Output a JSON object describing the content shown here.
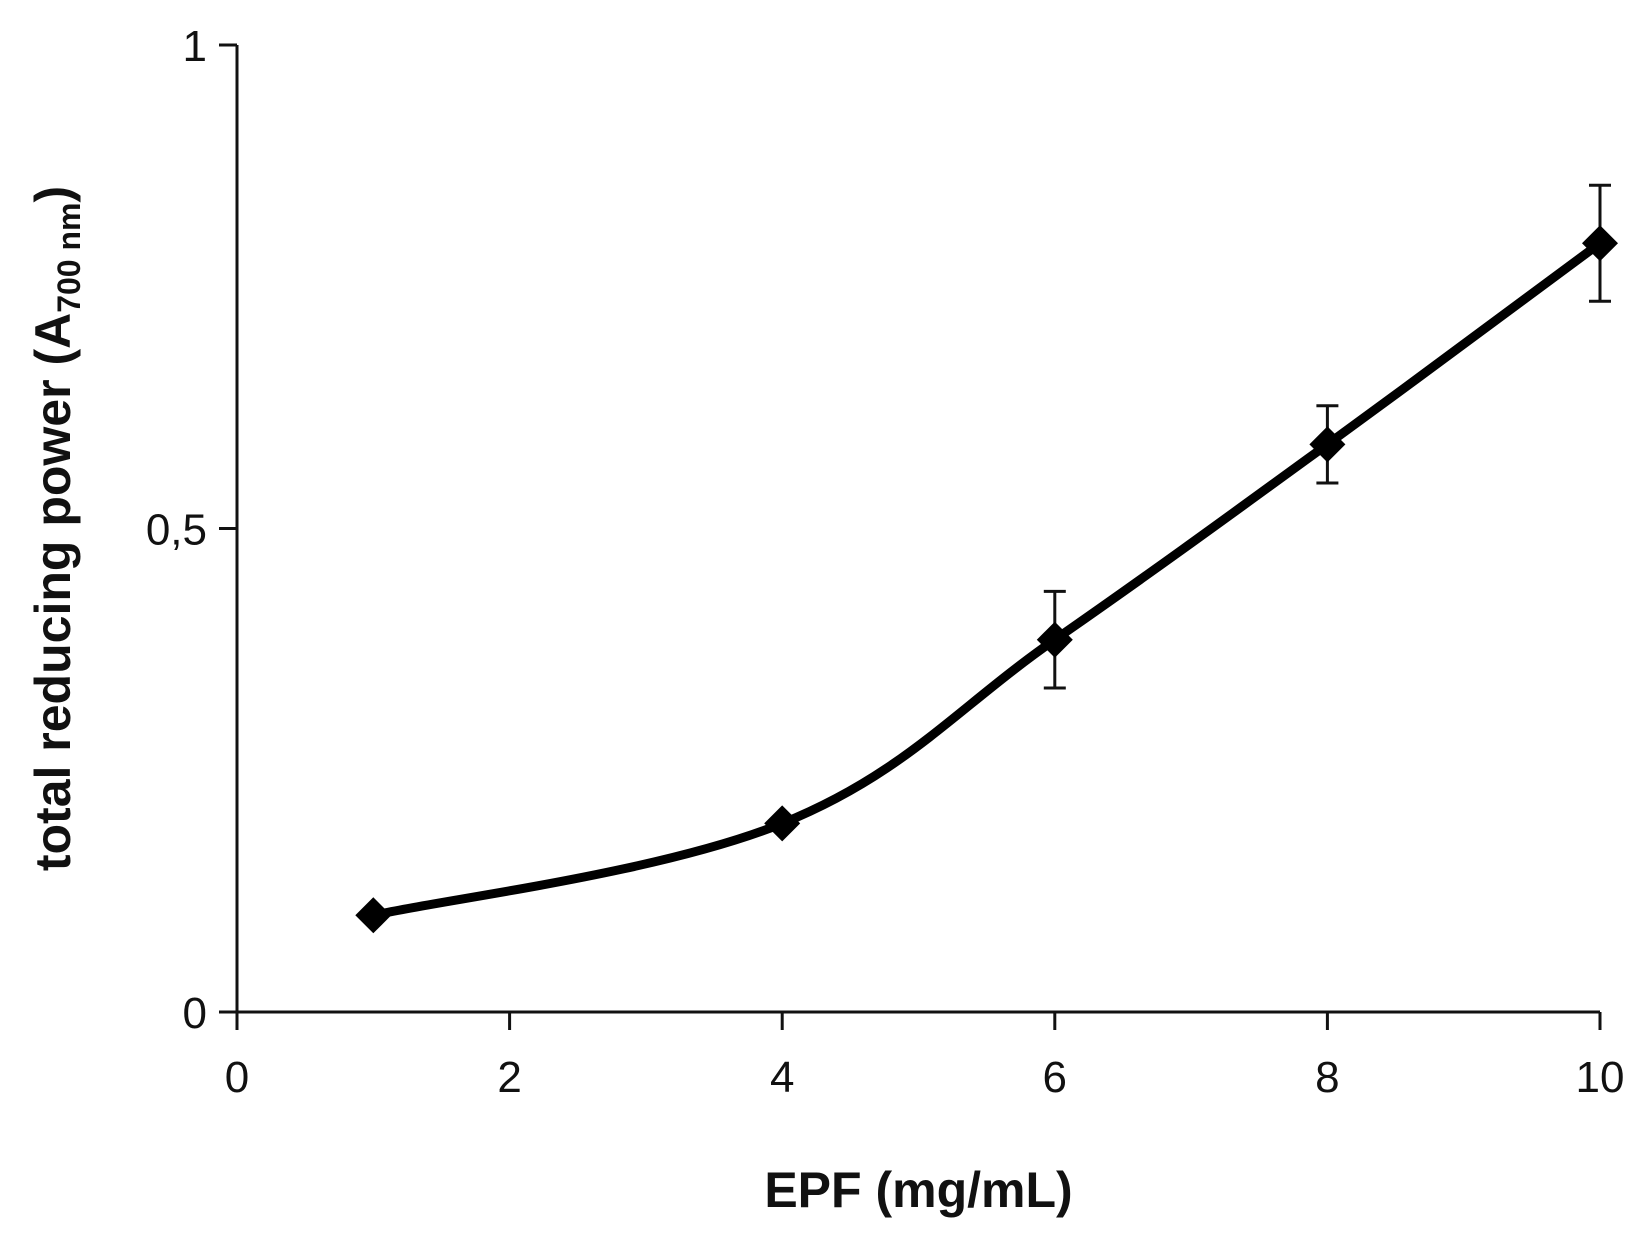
{
  "chart_data": {
    "type": "line",
    "title": "",
    "xlabel": "EPF (mg/mL)",
    "ylabel": {
      "main": "total reducing power (A",
      "subscript": "700 nm",
      "close": ")"
    },
    "xlim": [
      0,
      10
    ],
    "ylim": [
      0,
      1
    ],
    "x_ticks": [
      {
        "value": 0,
        "label": "0"
      },
      {
        "value": 2,
        "label": "2"
      },
      {
        "value": 4,
        "label": "4"
      },
      {
        "value": 6,
        "label": "6"
      },
      {
        "value": 8,
        "label": "8"
      },
      {
        "value": 10,
        "label": "10"
      }
    ],
    "y_ticks": [
      {
        "value": 0,
        "label": "0"
      },
      {
        "value": 0.5,
        "label": "0,5"
      },
      {
        "value": 1,
        "label": "1"
      }
    ],
    "grid": false,
    "legend": "none",
    "line_color": "#000000",
    "marker": "diamond",
    "series": [
      {
        "x": [
          1,
          4,
          6,
          8,
          10
        ],
        "y": [
          0.1,
          0.195,
          0.385,
          0.587,
          0.795
        ],
        "error": [
          0,
          0,
          0.05,
          0.04,
          0.06
        ]
      }
    ]
  }
}
